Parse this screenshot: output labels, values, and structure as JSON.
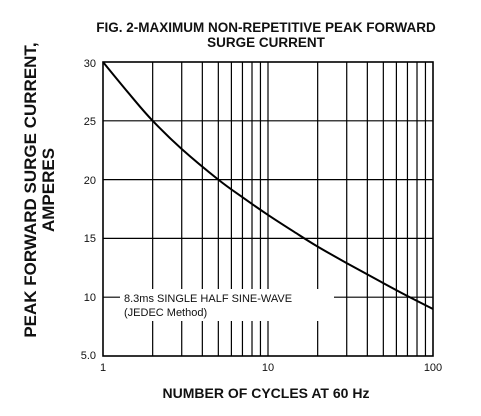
{
  "chart_data": {
    "type": "line",
    "title_lines": [
      "FIG. 2-MAXIMUM NON-REPETITIVE PEAK FORWARD",
      "SURGE CURRENT"
    ],
    "ylabel_lines": [
      "PEAK  FORWARD SURGE CURRENT,",
      "AMPERES"
    ],
    "xlabel": "NUMBER OF CYCLES AT 60 Hz",
    "x_scale": "log",
    "xlim": [
      1,
      100
    ],
    "ylim": [
      5,
      30
    ],
    "x_tick_labels": [
      "1",
      "10",
      "100"
    ],
    "y_tick_labels": [
      "5.0",
      "10",
      "15",
      "20",
      "25",
      "30"
    ],
    "grid": true,
    "annotation_lines": [
      "8.3ms SINGLE HALF SINE-WAVE",
      "(JEDEC Method)"
    ],
    "series": [
      {
        "x": [
          1,
          1.5,
          2,
          3,
          5,
          7,
          10,
          15,
          20,
          30,
          50,
          70,
          100
        ],
        "y": [
          30,
          27,
          25,
          22.6,
          20,
          18.5,
          17,
          15.4,
          14.3,
          12.9,
          11.2,
          10.1,
          9
        ]
      }
    ]
  }
}
